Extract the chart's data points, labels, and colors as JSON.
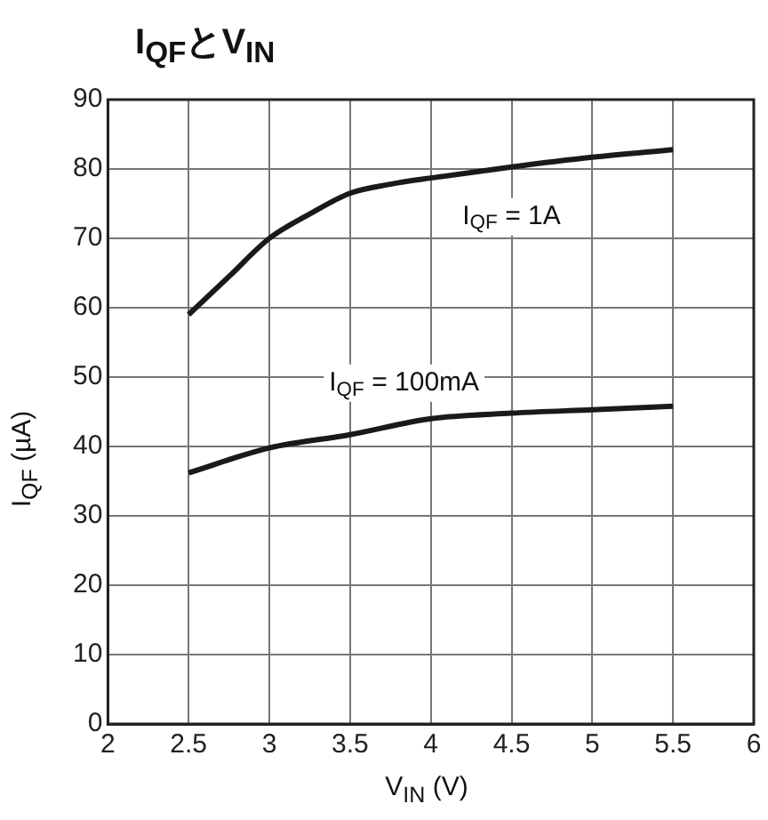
{
  "chart_data": {
    "type": "line",
    "title": "I$_{QF}$とV$_{IN}$",
    "xlabel": "V$_{IN}$ (V)",
    "ylabel": "I$_{QF}$ (µA)",
    "series": [
      {
        "name": "I$_{QF}$ = 1A",
        "color": "#1a1a1a",
        "x": [
          2.5,
          2.75,
          3,
          3.25,
          3.5,
          3.75,
          4,
          4.5,
          5,
          5.5
        ],
        "values": [
          59,
          64.5,
          70,
          73.5,
          76.5,
          77.8,
          78.7,
          80.3,
          81.7,
          82.8
        ]
      },
      {
        "name": "I$_{QF}$ = 100mA",
        "color": "#1a1a1a",
        "x": [
          2.5,
          3,
          3.5,
          4,
          4.5,
          5,
          5.5
        ],
        "values": [
          36.2,
          39.8,
          41.7,
          44,
          44.8,
          45.3,
          45.8
        ]
      }
    ],
    "xlim": [
      2,
      6
    ],
    "xticks": [
      2,
      2.5,
      3,
      3.5,
      4,
      4.5,
      5,
      5.5,
      6
    ],
    "ylim": [
      0,
      90
    ],
    "yticks": [
      0,
      10,
      20,
      30,
      40,
      50,
      60,
      70,
      80,
      90
    ],
    "grid": true,
    "legend": false,
    "marker": "none",
    "line_style": "solid"
  }
}
